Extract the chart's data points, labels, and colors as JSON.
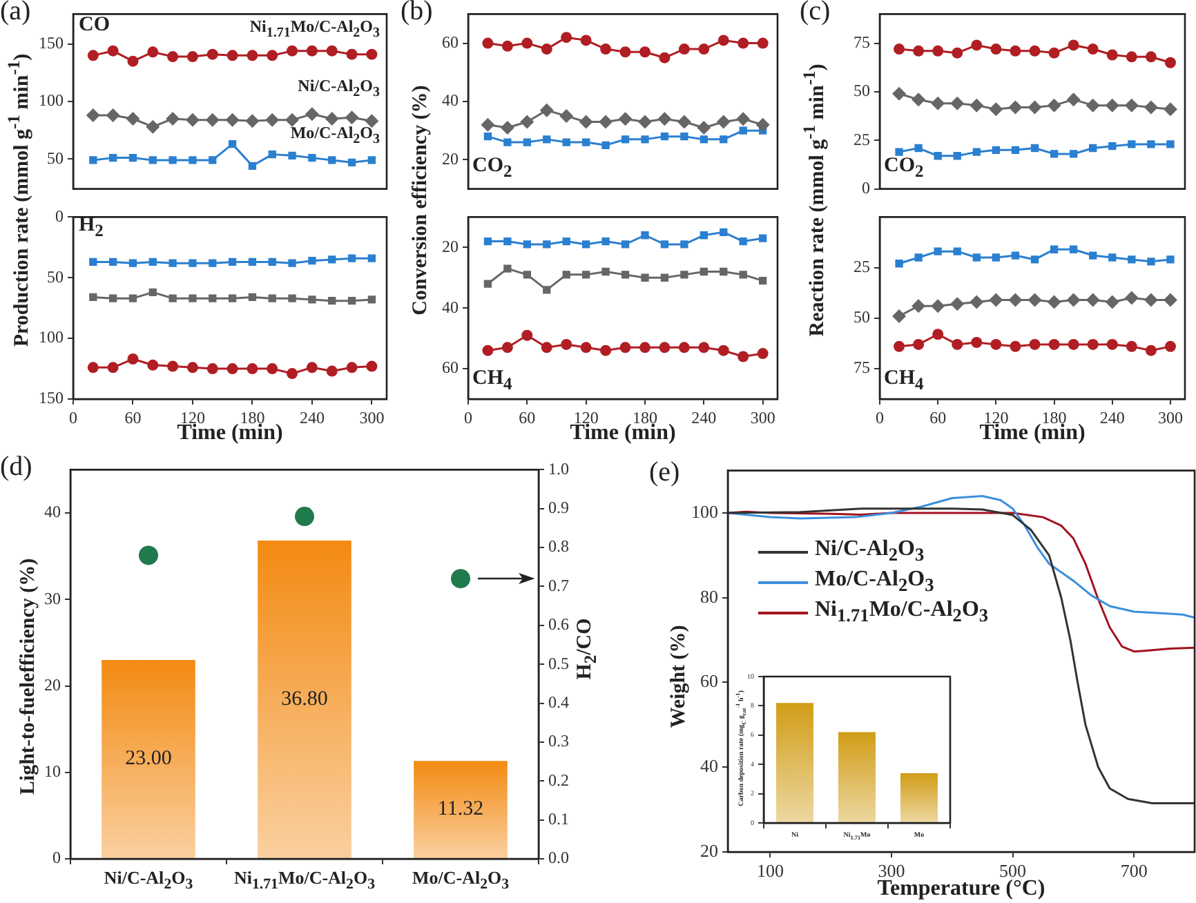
{
  "chart_data": [
    {
      "type": "line",
      "annotations": [
        "(a)",
        "CO"
      ],
      "ylabel": "Production rate (mmol g$^{-1}$ min$^{-1}$)",
      "x": [
        20,
        40,
        60,
        80,
        100,
        120,
        140,
        160,
        180,
        200,
        220,
        240,
        260,
        280,
        300
      ],
      "xlim": [
        0,
        315
      ],
      "xticks": [
        0,
        60,
        120,
        180,
        240,
        300
      ],
      "ylim": [
        24,
        176
      ],
      "yticks": [
        50,
        100,
        150
      ],
      "tick_labels": "y",
      "series": [
        {
          "name": "Ni$_{1.71}$Mo/C-Al$_{2}$O$_{3}$",
          "color": "#b01e23",
          "marker": "circle",
          "values": [
            140,
            144,
            135,
            143,
            139,
            139,
            141,
            140,
            140,
            140,
            144,
            144,
            144,
            141,
            141
          ]
        },
        {
          "name": "Ni/C-Al$_{2}$O$_{3}$",
          "color": "#666666",
          "marker": "diamond",
          "values": [
            88,
            88,
            85,
            78,
            85,
            84,
            84,
            84,
            83,
            84,
            84,
            89,
            85,
            86,
            83
          ]
        },
        {
          "name": "Mo/C-Al$_{2}$O$_{3}$",
          "color": "#2a7fd0",
          "marker": "square",
          "values": [
            49,
            51,
            51,
            49,
            49,
            49,
            49,
            63,
            44,
            54,
            53,
            51,
            49,
            47,
            49
          ]
        }
      ]
    },
    {
      "type": "line",
      "annotations": [
        "H$_{2}$"
      ],
      "xlabel": "Time (min)",
      "x": [
        20,
        40,
        60,
        80,
        100,
        120,
        140,
        160,
        180,
        200,
        220,
        240,
        260,
        280,
        300
      ],
      "xlim": [
        0,
        315
      ],
      "xticks": [
        0,
        60,
        120,
        180,
        240,
        300
      ],
      "ylim": [
        150,
        0
      ],
      "yticks": [
        0,
        50,
        100,
        150
      ],
      "series": [
        {
          "color": "#2a7fd0",
          "marker": "square",
          "values": [
            37,
            37,
            38,
            37,
            38,
            38,
            38,
            37,
            37,
            37,
            38,
            36,
            35,
            34,
            34
          ]
        },
        {
          "color": "#666666",
          "marker": "square",
          "values": [
            66,
            67,
            67,
            62,
            67,
            67,
            67,
            67,
            66,
            67,
            67,
            68,
            69,
            69,
            68
          ]
        },
        {
          "color": "#b01e23",
          "marker": "circle",
          "values": [
            124,
            124,
            117,
            122,
            123,
            124,
            125,
            125,
            125,
            125,
            129,
            124,
            127,
            124,
            123
          ]
        }
      ]
    },
    {
      "type": "line",
      "annotations": [
        "(b)",
        "CO$_{2}$"
      ],
      "ylabel": "Conversion efficiency (%)",
      "x": [
        20,
        40,
        60,
        80,
        100,
        120,
        140,
        160,
        180,
        200,
        220,
        240,
        260,
        280,
        300
      ],
      "xlim": [
        0,
        315
      ],
      "xticks": [
        0,
        60,
        120,
        180,
        240,
        300
      ],
      "ylim": [
        10,
        70
      ],
      "yticks": [
        20,
        40,
        60
      ],
      "tick_labels": "y",
      "series": [
        {
          "color": "#b01e23",
          "marker": "circle",
          "values": [
            60,
            59,
            60,
            58,
            62,
            61,
            58,
            57,
            57,
            55,
            58,
            58,
            61,
            60,
            60
          ]
        },
        {
          "color": "#666666",
          "marker": "diamond",
          "values": [
            32,
            31,
            33,
            37,
            35,
            33,
            33,
            34,
            33,
            34,
            33,
            31,
            33,
            34,
            32
          ]
        },
        {
          "color": "#2a7fd0",
          "marker": "square",
          "values": [
            28,
            26,
            26,
            27,
            26,
            26,
            25,
            27,
            27,
            28,
            28,
            27,
            27,
            30,
            30
          ]
        }
      ]
    },
    {
      "type": "line",
      "annotations": [
        "CH$_{4}$"
      ],
      "xlabel": "Time (min)",
      "x": [
        20,
        40,
        60,
        80,
        100,
        120,
        140,
        160,
        180,
        200,
        220,
        240,
        260,
        280,
        300
      ],
      "xlim": [
        0,
        315
      ],
      "xticks": [
        0,
        60,
        120,
        180,
        240,
        300
      ],
      "ylim": [
        70,
        10
      ],
      "yticks": [
        20,
        40,
        60
      ],
      "series": [
        {
          "color": "#2a7fd0",
          "marker": "square",
          "values": [
            18,
            18,
            19,
            19,
            18,
            19,
            18,
            19,
            16,
            19,
            19,
            16,
            15,
            18,
            17
          ]
        },
        {
          "color": "#666666",
          "marker": "square",
          "values": [
            32,
            27,
            29,
            34,
            29,
            29,
            28,
            29,
            30,
            30,
            29,
            28,
            28,
            29,
            31
          ]
        },
        {
          "color": "#b01e23",
          "marker": "circle",
          "values": [
            54,
            53,
            49,
            53,
            52,
            53,
            54,
            53,
            53,
            53,
            53,
            53,
            54,
            56,
            55
          ]
        }
      ]
    },
    {
      "type": "line",
      "annotations": [
        "(c)",
        "CO$_{2}$"
      ],
      "ylabel": "Reaction rate (mmol g$^{-1}$ min$^{-1}$)",
      "x": [
        20,
        40,
        60,
        80,
        100,
        120,
        140,
        160,
        180,
        200,
        220,
        240,
        260,
        280,
        300
      ],
      "xlim": [
        0,
        315
      ],
      "xticks": [
        0,
        60,
        120,
        180,
        240,
        300
      ],
      "ylim": [
        0,
        90
      ],
      "yticks": [
        0,
        25,
        50,
        75
      ],
      "tick_labels": "y",
      "series": [
        {
          "color": "#b01e23",
          "marker": "circle",
          "values": [
            72,
            71,
            71,
            70,
            74,
            72,
            71,
            71,
            70,
            74,
            72,
            69,
            68,
            68,
            65
          ]
        },
        {
          "color": "#666666",
          "marker": "diamond",
          "values": [
            49,
            46,
            44,
            44,
            43,
            41,
            42,
            42,
            43,
            46,
            43,
            43,
            43,
            42,
            41
          ]
        },
        {
          "color": "#2a7fd0",
          "marker": "square",
          "values": [
            19,
            21,
            17,
            17,
            19,
            20,
            20,
            21,
            18,
            18,
            21,
            22,
            23,
            23,
            23
          ]
        }
      ]
    },
    {
      "type": "line",
      "annotations": [
        "CH$_{4}$"
      ],
      "xlabel": "Time (min)",
      "x": [
        20,
        40,
        60,
        80,
        100,
        120,
        140,
        160,
        180,
        200,
        220,
        240,
        260,
        280,
        300
      ],
      "xlim": [
        0,
        315
      ],
      "xticks": [
        0,
        60,
        120,
        180,
        240,
        300
      ],
      "ylim": [
        90,
        0
      ],
      "yticks": [
        25,
        50,
        75
      ],
      "series": [
        {
          "color": "#2a7fd0",
          "marker": "square",
          "values": [
            23,
            20,
            17,
            17,
            20,
            20,
            19,
            21,
            16,
            16,
            19,
            20,
            21,
            22,
            21
          ]
        },
        {
          "color": "#666666",
          "marker": "diamond",
          "values": [
            49,
            44,
            44,
            43,
            42,
            41,
            41,
            41,
            42,
            41,
            41,
            42,
            40,
            41,
            41
          ]
        },
        {
          "color": "#b01e23",
          "marker": "circle",
          "values": [
            64,
            63,
            58,
            63,
            62,
            63,
            64,
            63,
            63,
            63,
            63,
            63,
            64,
            66,
            64
          ]
        }
      ]
    },
    {
      "type": "bar",
      "annotations": [
        "(d)"
      ],
      "categories": [
        "Ni/C-Al$_{2}$O$_{3}$",
        "Ni$_{1.71}$Mo/C-Al$_{2}$O$_{3}$",
        "Mo/C-Al$_{2}$O$_{3}$"
      ],
      "ylabel": "Light-to-fuelefficiency (%)",
      "y2label": "H$_{2}$/CO",
      "ylim": [
        0,
        45
      ],
      "yticks": [
        0,
        10,
        20,
        30,
        40
      ],
      "y2lim": [
        0,
        1
      ],
      "y2ticks": [
        {
          "value": 0,
          "label": "0.0"
        },
        {
          "value": 0.1,
          "label": "0.1"
        },
        {
          "value": 0.2,
          "label": "0.2"
        },
        {
          "value": 0.3,
          "label": "0.3"
        },
        {
          "value": 0.4,
          "label": "0.4"
        },
        {
          "value": 0.5,
          "label": "0.5"
        },
        {
          "value": 0.6,
          "label": "0.6"
        },
        {
          "value": 0.7,
          "label": "0.7"
        },
        {
          "value": 0.8,
          "label": "0.8"
        },
        {
          "value": 0.9,
          "label": "0.9"
        },
        {
          "value": 1,
          "label": "1.0"
        }
      ],
      "series": [
        {
          "color": "#f38a12",
          "values": [
            23,
            36.8,
            11.32
          ],
          "value_labels": [
            "23.00",
            "36.80",
            "11.32"
          ]
        },
        {
          "type": "scatter",
          "axis": "y2",
          "color": "#1f7a4c",
          "x": [
            "Ni/C-Al$_{2}$O$_{3}$",
            "Ni$_{1.71}$Mo/C-Al$_{2}$O$_{3}$",
            "Mo/C-Al$_{2}$O$_{3}$"
          ],
          "values": [
            0.78,
            0.88,
            0.72
          ]
        }
      ]
    },
    {
      "type": "line",
      "annotations": [
        "(e)"
      ],
      "xlabel": "Temperature (°C)",
      "ylabel": "Weight (%)",
      "xlim": [
        30,
        800
      ],
      "xticks": [
        100,
        300,
        500,
        700
      ],
      "ylim": [
        20,
        110
      ],
      "yticks": [
        20,
        40,
        60,
        80,
        100
      ],
      "legend": "top left",
      "series": [
        {
          "name": "Ni/C-Al$_{2}$O$_{3}$",
          "color": "#333333",
          "x": [
            30,
            150,
            250,
            400,
            450,
            500,
            530,
            560,
            580,
            595,
            607,
            620,
            641,
            660,
            690,
            730,
            800
          ],
          "values": [
            100,
            100.2,
            101,
            101,
            100.8,
            99.5,
            96,
            90,
            80,
            70,
            60,
            50,
            40,
            35,
            32.5,
            31.5,
            31.5
          ]
        },
        {
          "name": "Mo/C-Al$_{2}$O$_{3}$",
          "color": "#3b8fdc",
          "x": [
            30,
            100,
            150,
            240,
            300,
            350,
            400,
            450,
            480,
            500,
            520,
            540,
            560,
            600,
            630,
            660,
            700,
            750,
            780,
            800
          ],
          "values": [
            100,
            99,
            98.7,
            99,
            100,
            101.5,
            103.5,
            104,
            103,
            101,
            97,
            92,
            88,
            84,
            80.5,
            78,
            76.7,
            76.3,
            76,
            75.3
          ]
        },
        {
          "name": "Ni$_{1.71}$Mo/C-Al$_{2}$O$_{3}$",
          "color": "#a3121e",
          "x": [
            30,
            60,
            100,
            200,
            250,
            300,
            400,
            500,
            550,
            580,
            600,
            620,
            640,
            660,
            680,
            700,
            720,
            760,
            800
          ],
          "values": [
            100,
            100.3,
            100,
            99.8,
            99.6,
            100,
            100,
            100,
            99,
            97,
            94,
            88,
            80,
            73,
            68.5,
            67.3,
            67.5,
            68,
            68.2
          ]
        }
      ]
    },
    {
      "type": "bar",
      "categories": [
        "Ni",
        "Ni$_{1.71}$Mo",
        "Mo"
      ],
      "ylabel": "Carbon deposition rate (mg$_{C}$ g$_{cat}$$^{-1}$ h$^{-1}$)",
      "ylim": [
        0,
        10
      ],
      "yticks": [
        0,
        2,
        4,
        6,
        8,
        10
      ],
      "color": "#d19d17",
      "values": [
        8.2,
        6.2,
        3.4
      ]
    }
  ]
}
